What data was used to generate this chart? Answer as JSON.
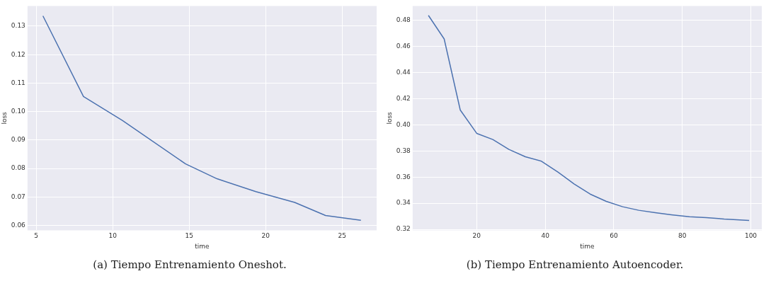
{
  "chart_data": [
    {
      "type": "line",
      "xlabel": "time",
      "ylabel": "loss",
      "annotations": [
        "(a) Tiempo Entrenamiento Oneshot."
      ],
      "xlim": [
        4.43,
        27.26
      ],
      "ylim": [
        0.0583,
        0.1371
      ],
      "xticks": [
        5,
        10,
        15,
        20,
        25
      ],
      "yticks": [
        0.06,
        0.07,
        0.08,
        0.09,
        {
          "value": 0.1,
          "label": "0.10"
        },
        0.11,
        0.12,
        0.13
      ],
      "grid": true,
      "marker": "none",
      "line_style": "solid",
      "legend": false,
      "series": [
        {
          "color": "#4c72b0",
          "x": [
            5.44,
            8.09,
            10.63,
            14.77,
            16.82,
            19.36,
            21.9,
            23.92,
            26.23
          ],
          "values": [
            0.1336,
            0.1053,
            0.0969,
            0.0816,
            0.0764,
            0.0719,
            0.0681,
            0.0635,
            0.0618
          ]
        }
      ]
    },
    {
      "type": "line",
      "xlabel": "time",
      "ylabel": "loss",
      "annotations": [
        "(b) Tiempo Entrenamiento Autoencoder."
      ],
      "xlim": [
        1.3,
        103.2
      ],
      "ylim": [
        0.3193,
        0.4908
      ],
      "xticks": [
        20,
        40,
        60,
        80,
        100
      ],
      "yticks": [
        0.32,
        0.34,
        0.36,
        0.38,
        {
          "value": 0.4,
          "label": "0.40"
        },
        0.42,
        0.44,
        0.46,
        0.48
      ],
      "grid": true,
      "marker": "none",
      "line_style": "solid",
      "legend": false,
      "series": [
        {
          "color": "#4c72b0",
          "x": [
            5.9,
            10.5,
            15.2,
            20,
            24.7,
            29.4,
            34.2,
            38.9,
            43.7,
            48.4,
            53.1,
            57.8,
            62.6,
            67.3,
            72.1,
            76.8,
            82.1,
            87,
            92.2,
            99.5
          ],
          "values": [
            0.4836,
            0.4656,
            0.4112,
            0.3934,
            0.3887,
            0.3811,
            0.3755,
            0.3721,
            0.3638,
            0.3548,
            0.347,
            0.3414,
            0.3373,
            0.3346,
            0.3328,
            0.3312,
            0.3297,
            0.329,
            0.3279,
            0.3268
          ]
        }
      ]
    }
  ]
}
